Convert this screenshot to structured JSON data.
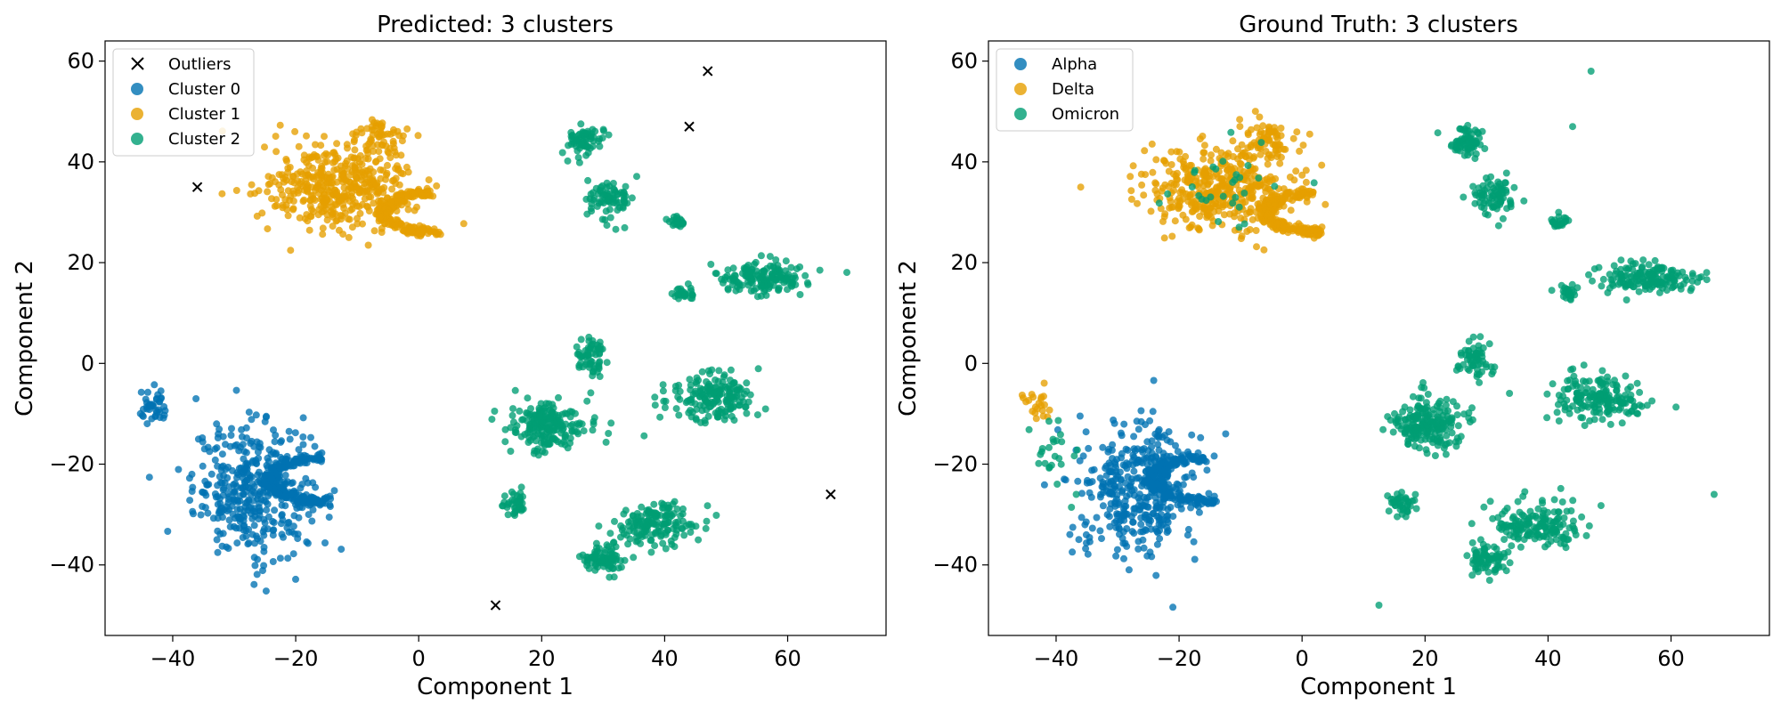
{
  "colors": {
    "alpha_cluster0": "#0072b2",
    "delta_cluster1": "#e69f00",
    "omicron_cluster2": "#009e73",
    "outlier": "#000000"
  },
  "chart_data": [
    {
      "type": "scatter",
      "title": "Predicted: 3 clusters",
      "xlabel": "Component 1",
      "ylabel": "Component 2",
      "xlim": [
        -51,
        76
      ],
      "ylim": [
        -54,
        64
      ],
      "xticks": [
        -40,
        -20,
        0,
        20,
        40,
        60
      ],
      "yticks": [
        -40,
        -20,
        0,
        20,
        40,
        60
      ],
      "xtick_labels": [
        "−40",
        "−20",
        "0",
        "20",
        "40",
        "60"
      ],
      "ytick_labels": [
        "−40",
        "−20",
        "0",
        "20",
        "40",
        "60"
      ],
      "grid": false,
      "legend_position": "top-left",
      "legend": [
        {
          "label": "Outliers",
          "marker": "x",
          "color": "#000000"
        },
        {
          "label": "Cluster 0",
          "marker": "circle",
          "color": "#0072b2"
        },
        {
          "label": "Cluster 1",
          "marker": "circle",
          "color": "#e69f00"
        },
        {
          "label": "Cluster 2",
          "marker": "circle",
          "color": "#009e73"
        }
      ],
      "outliers": [
        [
          -36,
          35
        ],
        [
          47,
          58
        ],
        [
          44,
          47
        ],
        [
          67,
          -26
        ],
        [
          12.5,
          -48
        ]
      ],
      "groups": [
        {
          "series": "Cluster 0",
          "color": "#0072b2",
          "kind": "blob",
          "cx": -27,
          "cy": -25,
          "rx": 8,
          "ry": 11,
          "n": 380
        },
        {
          "series": "Cluster 0",
          "color": "#0072b2",
          "kind": "crescent",
          "cx": -21,
          "cy": -23,
          "r": 8,
          "n": 220
        },
        {
          "series": "Cluster 0",
          "color": "#0072b2",
          "kind": "blob",
          "cx": -43,
          "cy": -9,
          "rx": 2,
          "ry": 2.5,
          "n": 40
        },
        {
          "series": "Cluster 1",
          "color": "#e69f00",
          "kind": "blob",
          "cx": -13,
          "cy": 35,
          "rx": 10,
          "ry": 7,
          "n": 420
        },
        {
          "series": "Cluster 1",
          "color": "#e69f00",
          "kind": "crescent",
          "cx": -3,
          "cy": 30,
          "r": 7,
          "n": 220
        },
        {
          "series": "Cluster 1",
          "color": "#e69f00",
          "kind": "blob",
          "cx": -6,
          "cy": 45,
          "rx": 4,
          "ry": 3,
          "n": 60
        },
        {
          "series": "Cluster 2",
          "color": "#009e73",
          "kind": "blob",
          "cx": 27,
          "cy": 44,
          "rx": 2.5,
          "ry": 2.5,
          "n": 70
        },
        {
          "series": "Cluster 2",
          "color": "#009e73",
          "kind": "blob",
          "cx": 31,
          "cy": 33,
          "rx": 3,
          "ry": 3.5,
          "n": 80
        },
        {
          "series": "Cluster 2",
          "color": "#009e73",
          "kind": "blob",
          "cx": 42,
          "cy": 28,
          "rx": 1.2,
          "ry": 1.2,
          "n": 25
        },
        {
          "series": "Cluster 2",
          "color": "#009e73",
          "kind": "blob",
          "cx": 56,
          "cy": 17,
          "rx": 6,
          "ry": 2.5,
          "n": 160
        },
        {
          "series": "Cluster 2",
          "color": "#009e73",
          "kind": "blob",
          "cx": 43,
          "cy": 14,
          "rx": 1.5,
          "ry": 1.2,
          "n": 25
        },
        {
          "series": "Cluster 2",
          "color": "#009e73",
          "kind": "blob",
          "cx": 28,
          "cy": 1,
          "rx": 2.5,
          "ry": 3,
          "n": 60
        },
        {
          "series": "Cluster 2",
          "color": "#009e73",
          "kind": "blob",
          "cx": 21,
          "cy": -12,
          "rx": 5,
          "ry": 4.5,
          "n": 200
        },
        {
          "series": "Cluster 2",
          "color": "#009e73",
          "kind": "blob",
          "cx": 48,
          "cy": -7,
          "rx": 6,
          "ry": 4,
          "n": 180
        },
        {
          "series": "Cluster 2",
          "color": "#009e73",
          "kind": "blob",
          "cx": 16,
          "cy": -28,
          "rx": 1.8,
          "ry": 2,
          "n": 40
        },
        {
          "series": "Cluster 2",
          "color": "#009e73",
          "kind": "blob",
          "cx": 30,
          "cy": -39,
          "rx": 3,
          "ry": 2.5,
          "n": 80
        },
        {
          "series": "Cluster 2",
          "color": "#009e73",
          "kind": "blob",
          "cx": 38,
          "cy": -32,
          "rx": 6,
          "ry": 3.5,
          "n": 160
        }
      ]
    },
    {
      "type": "scatter",
      "title": "Ground Truth: 3 clusters",
      "xlabel": "Component 1",
      "ylabel": "Component 2",
      "xlim": [
        -51,
        76
      ],
      "ylim": [
        -54,
        64
      ],
      "xticks": [
        -40,
        -20,
        0,
        20,
        40,
        60
      ],
      "yticks": [
        -40,
        -20,
        0,
        20,
        40,
        60
      ],
      "xtick_labels": [
        "−40",
        "−20",
        "0",
        "20",
        "40",
        "60"
      ],
      "ytick_labels": [
        "−40",
        "−20",
        "0",
        "20",
        "40",
        "60"
      ],
      "grid": false,
      "legend_position": "top-left",
      "legend": [
        {
          "label": "Alpha",
          "marker": "circle",
          "color": "#0072b2"
        },
        {
          "label": "Delta",
          "marker": "circle",
          "color": "#e69f00"
        },
        {
          "label": "Omicron",
          "marker": "circle",
          "color": "#009e73"
        }
      ],
      "outliers_as_points": [
        [
          -36,
          35,
          "#e69f00"
        ],
        [
          47,
          58,
          "#009e73"
        ],
        [
          44,
          47,
          "#009e73"
        ],
        [
          67,
          -26,
          "#009e73"
        ],
        [
          12.5,
          -48,
          "#009e73"
        ]
      ],
      "groups": [
        {
          "series": "Alpha",
          "color": "#0072b2",
          "kind": "blob",
          "cx": -27,
          "cy": -25,
          "rx": 8,
          "ry": 11,
          "n": 380
        },
        {
          "series": "Alpha",
          "color": "#0072b2",
          "kind": "crescent",
          "cx": -21,
          "cy": -23,
          "r": 8,
          "n": 220
        },
        {
          "series": "Delta",
          "color": "#e69f00",
          "kind": "blob",
          "cx": -43,
          "cy": -8,
          "rx": 2,
          "ry": 2.5,
          "n": 22
        },
        {
          "series": "Omicron",
          "color": "#009e73",
          "kind": "blob",
          "cx": -40,
          "cy": -18,
          "rx": 3,
          "ry": 6,
          "n": 25
        },
        {
          "series": "Delta",
          "color": "#e69f00",
          "kind": "blob",
          "cx": -13,
          "cy": 35,
          "rx": 10,
          "ry": 7,
          "n": 420
        },
        {
          "series": "Delta",
          "color": "#e69f00",
          "kind": "crescent",
          "cx": -3,
          "cy": 30,
          "r": 7,
          "n": 220
        },
        {
          "series": "Delta",
          "color": "#e69f00",
          "kind": "blob",
          "cx": -6,
          "cy": 45,
          "rx": 4,
          "ry": 3,
          "n": 60
        },
        {
          "series": "Omicron",
          "color": "#009e73",
          "kind": "blob",
          "cx": -14,
          "cy": 35,
          "rx": 9,
          "ry": 7,
          "n": 30
        },
        {
          "series": "Omicron",
          "color": "#009e73",
          "kind": "blob",
          "cx": 27,
          "cy": 44,
          "rx": 2.5,
          "ry": 2.5,
          "n": 70
        },
        {
          "series": "Omicron",
          "color": "#009e73",
          "kind": "blob",
          "cx": 31,
          "cy": 33,
          "rx": 3,
          "ry": 3.5,
          "n": 80
        },
        {
          "series": "Omicron",
          "color": "#009e73",
          "kind": "blob",
          "cx": 42,
          "cy": 28,
          "rx": 1.2,
          "ry": 1.2,
          "n": 25
        },
        {
          "series": "Omicron",
          "color": "#009e73",
          "kind": "blob",
          "cx": 56,
          "cy": 17,
          "rx": 6,
          "ry": 2.5,
          "n": 160
        },
        {
          "series": "Omicron",
          "color": "#009e73",
          "kind": "blob",
          "cx": 43,
          "cy": 14,
          "rx": 1.5,
          "ry": 1.2,
          "n": 25
        },
        {
          "series": "Omicron",
          "color": "#009e73",
          "kind": "blob",
          "cx": 28,
          "cy": 1,
          "rx": 2.5,
          "ry": 3,
          "n": 60
        },
        {
          "series": "Omicron",
          "color": "#009e73",
          "kind": "blob",
          "cx": 21,
          "cy": -12,
          "rx": 5,
          "ry": 4.5,
          "n": 200
        },
        {
          "series": "Omicron",
          "color": "#009e73",
          "kind": "blob",
          "cx": 48,
          "cy": -7,
          "rx": 6,
          "ry": 4,
          "n": 180
        },
        {
          "series": "Omicron",
          "color": "#009e73",
          "kind": "blob",
          "cx": 16,
          "cy": -28,
          "rx": 1.8,
          "ry": 2,
          "n": 40
        },
        {
          "series": "Omicron",
          "color": "#009e73",
          "kind": "blob",
          "cx": 30,
          "cy": -39,
          "rx": 3,
          "ry": 2.5,
          "n": 80
        },
        {
          "series": "Omicron",
          "color": "#009e73",
          "kind": "blob",
          "cx": 38,
          "cy": -32,
          "rx": 6,
          "ry": 3.5,
          "n": 160
        }
      ]
    }
  ]
}
